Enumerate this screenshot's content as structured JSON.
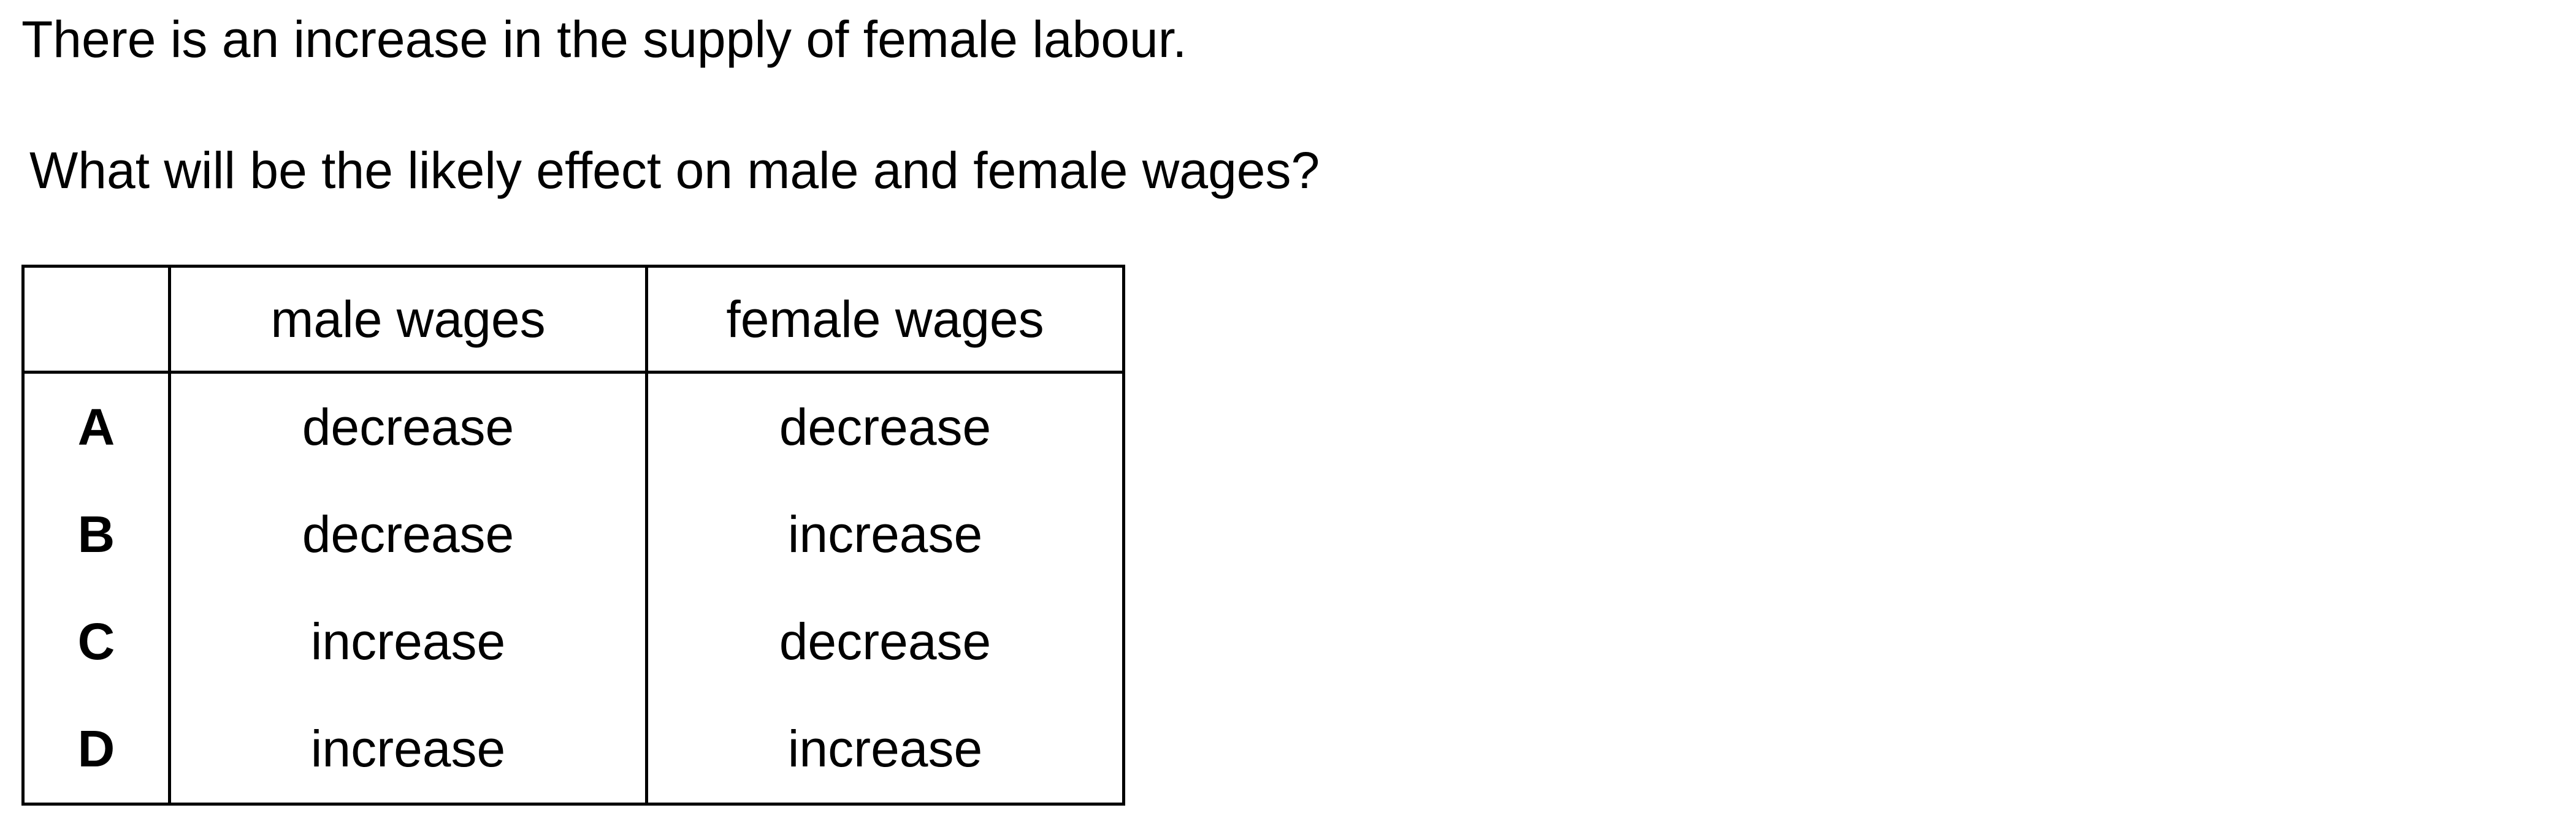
{
  "question": {
    "stem": "There is an increase in the supply of female labour.",
    "prompt": "What will be the likely effect on male and female wages?"
  },
  "table": {
    "headers": [
      "",
      "male wages",
      "female wages"
    ],
    "rows": [
      {
        "letter": "A",
        "male": "decrease",
        "female": "decrease"
      },
      {
        "letter": "B",
        "male": "decrease",
        "female": "increase"
      },
      {
        "letter": "C",
        "male": "increase",
        "female": "decrease"
      },
      {
        "letter": "D",
        "male": "increase",
        "female": "increase"
      }
    ]
  }
}
